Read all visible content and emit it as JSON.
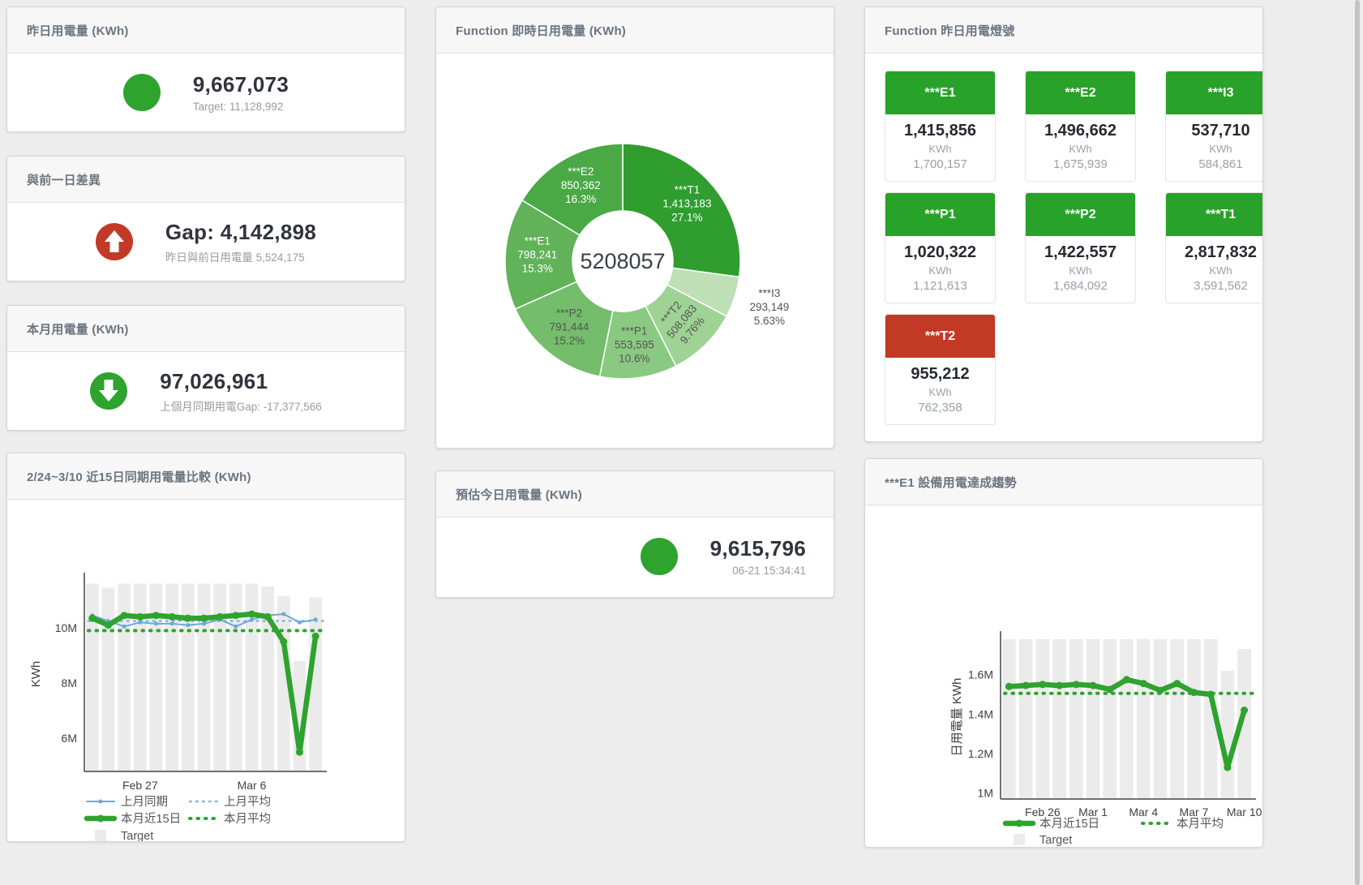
{
  "colors": {
    "green": "#28a228",
    "red": "#c23a26",
    "blue": "#6fa8d6",
    "target_gray": "#ebebeb",
    "header_text": "#6b7580",
    "value_text": "#30343c",
    "muted_text": "#9b9b9b"
  },
  "panels": {
    "yesterday": {
      "title": "昨日用電量 (KWh)",
      "value": "9,667,073",
      "subtitle": "Target: 11,128,992",
      "indicator": "green-circle"
    },
    "diff": {
      "title": "與前一日差異",
      "value": "Gap: 4,142,898",
      "subtitle": "昨日與前日用電量 5,524,175",
      "indicator": "red-up-arrow"
    },
    "month": {
      "title": "本月用電量 (KWh)",
      "value": "97,026,961",
      "subtitle": "上個月同期用電Gap: -17,377,566",
      "indicator": "green-down-arrow"
    },
    "compare": {
      "title": "2/24~3/10 近15日同期用電量比較 (KWh)"
    },
    "realtime": {
      "title": "Function 即時日用電量 (KWh)"
    },
    "estimate": {
      "title": "預估今日用電量 (KWh)",
      "value": "9,615,796",
      "subtitle": "06-21 15:34:41",
      "indicator": "green-circle"
    },
    "lights": {
      "title": "Function 昨日用電燈號",
      "tiles": [
        {
          "label": "***E1",
          "value": "1,415,856",
          "unit": "KWh",
          "target": "1,700,157",
          "status": "green"
        },
        {
          "label": "***E2",
          "value": "1,496,662",
          "unit": "KWh",
          "target": "1,675,939",
          "status": "green"
        },
        {
          "label": "***I3",
          "value": "537,710",
          "unit": "KWh",
          "target": "584,861",
          "status": "green"
        },
        {
          "label": "***P1",
          "value": "1,020,322",
          "unit": "KWh",
          "target": "1,121,613",
          "status": "green"
        },
        {
          "label": "***P2",
          "value": "1,422,557",
          "unit": "KWh",
          "target": "1,684,092",
          "status": "green"
        },
        {
          "label": "***T1",
          "value": "2,817,832",
          "unit": "KWh",
          "target": "3,591,562",
          "status": "green"
        },
        {
          "label": "***T2",
          "value": "955,212",
          "unit": "KWh",
          "target": "762,358",
          "status": "red"
        }
      ]
    },
    "e1trend": {
      "title": "***E1 設備用電達成趨勢"
    }
  },
  "chart_data": [
    {
      "id": "donut",
      "type": "pie",
      "title": "Function 即時日用電量 (KWh)",
      "center_label": "5208057",
      "legend_position": "none",
      "slices": [
        {
          "name": "***T1",
          "value": 1413183,
          "value_label": "1,413,183",
          "pct_label": "27.1%",
          "color": "#2f9e2f",
          "text": "#ffffff"
        },
        {
          "name": "***I3",
          "value": 293149,
          "value_label": "293,149",
          "pct_label": "5.63%",
          "color": "#bfe0b6",
          "text": "#555555",
          "label_pos": "outside"
        },
        {
          "name": "***T2",
          "value": 508083,
          "value_label": "508,083",
          "pct_label": "9.76%",
          "color": "#9ed395",
          "text": "#555555",
          "label_rotate": -50
        },
        {
          "name": "***P1",
          "value": 553595,
          "value_label": "553,595",
          "pct_label": "10.6%",
          "color": "#8ac981",
          "text": "#555555"
        },
        {
          "name": "***P2",
          "value": 791444,
          "value_label": "791,444",
          "pct_label": "15.2%",
          "color": "#74bd6b",
          "text": "#555555"
        },
        {
          "name": "***E1",
          "value": 798241,
          "value_label": "798,241",
          "pct_label": "15.3%",
          "color": "#61b259",
          "text": "#ffffff"
        },
        {
          "name": "***E2",
          "value": 850362,
          "value_label": "850,362",
          "pct_label": "16.3%",
          "color": "#4aa945",
          "text": "#ffffff"
        }
      ]
    },
    {
      "id": "compare15",
      "type": "line",
      "title": "2/24~3/10 近15日同期用電量比較 (KWh)",
      "xlabel": "",
      "ylabel": "KWh",
      "unit": "millions of KWh",
      "grid": false,
      "legend_position": "bottom",
      "ylim": [
        4.8,
        11.85
      ],
      "x_labels": [
        "2/24",
        "2/25",
        "2/26",
        "2/27",
        "2/28",
        "3/1",
        "3/2",
        "3/3",
        "3/4",
        "3/5",
        "3/6",
        "3/7",
        "3/8",
        "3/9",
        "3/10"
      ],
      "x_ticks": [
        {
          "index": 3,
          "label": "Feb 27"
        },
        {
          "index": 10,
          "label": "Mar 6"
        }
      ],
      "y_ticks": [
        {
          "v": 6,
          "label": "6M"
        },
        {
          "v": 8,
          "label": "8M"
        },
        {
          "v": 10,
          "label": "10M"
        }
      ],
      "series": [
        {
          "name": "上月同期",
          "style": "thin-line",
          "color": "#6fa8d6",
          "values": [
            10.45,
            10.25,
            10.05,
            10.2,
            10.15,
            10.15,
            10.1,
            10.15,
            10.3,
            10.05,
            10.3,
            10.45,
            10.5,
            10.2,
            10.3
          ]
        },
        {
          "name": "上月平均",
          "style": "dotted-thin",
          "color": "#7fb2dd",
          "values": 10.25
        },
        {
          "name": "本月近15日",
          "style": "thick-line",
          "color": "#2ea32e",
          "values": [
            10.35,
            10.1,
            10.45,
            10.4,
            10.45,
            10.4,
            10.35,
            10.35,
            10.4,
            10.45,
            10.5,
            10.4,
            9.5,
            5.5,
            9.7
          ]
        },
        {
          "name": "本月平均",
          "style": "dotted-thick",
          "color": "#2ea32e",
          "values": 9.9
        },
        {
          "name": "Target",
          "style": "bar",
          "color": "#ebebeb",
          "values": [
            11.6,
            11.45,
            11.6,
            11.6,
            11.6,
            11.6,
            11.6,
            11.6,
            11.6,
            11.6,
            11.6,
            11.5,
            11.15,
            8.8,
            11.1
          ]
        }
      ]
    },
    {
      "id": "e1trend",
      "type": "line",
      "title": "***E1 設備用電達成趨勢",
      "xlabel": "",
      "ylabel": "日用電量 KWh",
      "unit": "millions of KWh",
      "grid": false,
      "legend_position": "bottom",
      "ylim": [
        0.97,
        1.8
      ],
      "x_labels": [
        "2/24",
        "2/25",
        "2/26",
        "2/27",
        "2/28",
        "3/1",
        "3/2",
        "3/3",
        "3/4",
        "3/5",
        "3/6",
        "3/7",
        "3/8",
        "3/9",
        "3/10"
      ],
      "x_ticks": [
        {
          "index": 2,
          "label": "Feb 26"
        },
        {
          "index": 5,
          "label": "Mar 1"
        },
        {
          "index": 8,
          "label": "Mar 4"
        },
        {
          "index": 11,
          "label": "Mar 7"
        },
        {
          "index": 14,
          "label": "Mar 10"
        }
      ],
      "y_ticks": [
        {
          "v": 1,
          "label": "1M"
        },
        {
          "v": 1.2,
          "label": "1.2M"
        },
        {
          "v": 1.4,
          "label": "1.4M"
        },
        {
          "v": 1.6,
          "label": "1.6M"
        }
      ],
      "series": [
        {
          "name": "本月近15日",
          "style": "thick-line",
          "color": "#2ea32e",
          "values": [
            1.54,
            1.545,
            1.55,
            1.545,
            1.55,
            1.545,
            1.525,
            1.575,
            1.555,
            1.52,
            1.555,
            1.51,
            1.5,
            1.13,
            1.42
          ]
        },
        {
          "name": "本月平均",
          "style": "dotted-thick",
          "color": "#2ea32e",
          "values": 1.505
        },
        {
          "name": "Target",
          "style": "bar",
          "color": "#ebebeb",
          "values": [
            1.78,
            1.78,
            1.78,
            1.78,
            1.78,
            1.78,
            1.78,
            1.78,
            1.78,
            1.78,
            1.78,
            1.78,
            1.78,
            1.62,
            1.73
          ]
        }
      ]
    }
  ]
}
